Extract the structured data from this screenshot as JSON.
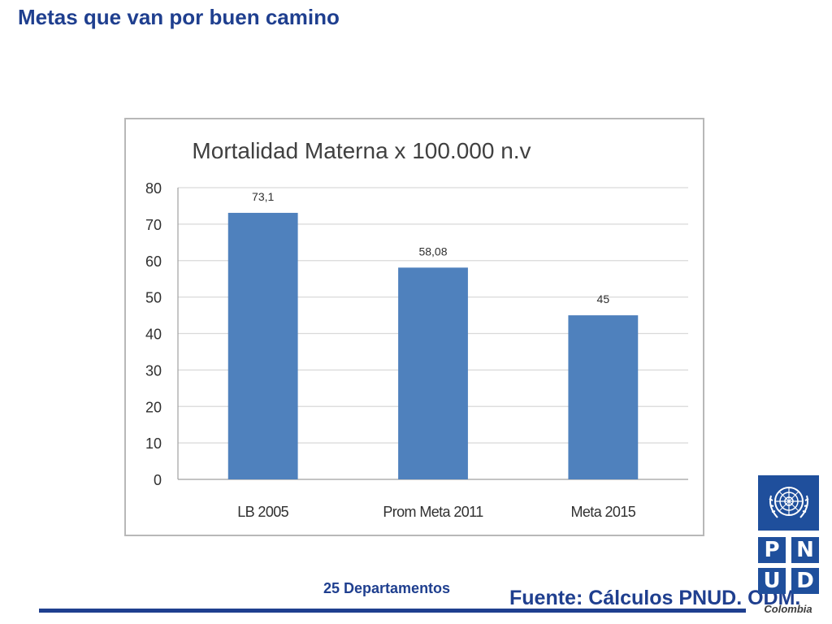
{
  "slide": {
    "title": "Metas que van por buen camino",
    "footer_note": "25 Departamentos",
    "source": "Fuente: Cálculos PNUD. ODM."
  },
  "logo": {
    "letters": [
      "P",
      "N",
      "U",
      "D"
    ],
    "country": "Colombia",
    "color": "#1f4f9c"
  },
  "chart_data": {
    "type": "bar",
    "title": "Mortalidad Materna  x 100.000 n.v",
    "categories": [
      "LB 2005",
      "Prom Meta 2011",
      "Meta 2015"
    ],
    "values": [
      73.1,
      58.08,
      45
    ],
    "value_labels": [
      "73,1",
      "58,08",
      "45"
    ],
    "ylim": [
      0,
      80
    ],
    "yticks": [
      0,
      10,
      20,
      30,
      40,
      50,
      60,
      70,
      80
    ],
    "grid": true,
    "legend": "none",
    "bar_color": "#4f81bd"
  }
}
